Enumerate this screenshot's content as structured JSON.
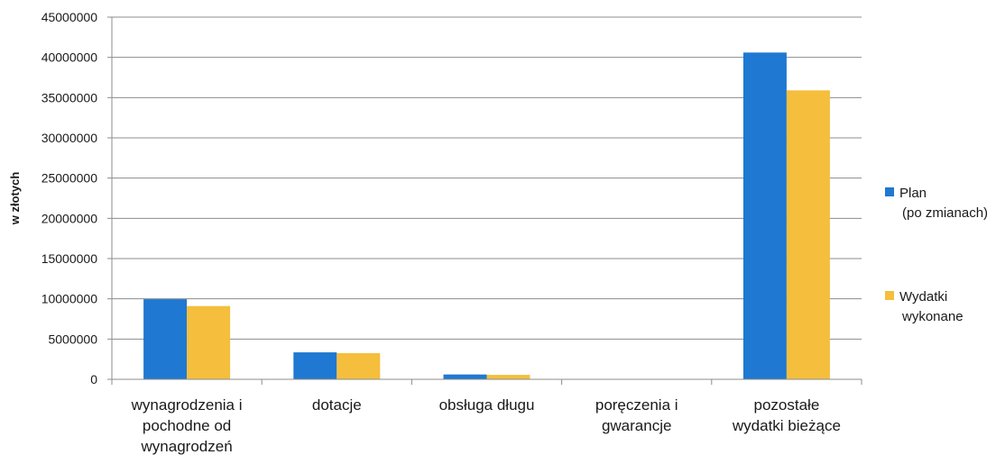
{
  "chart_data": {
    "type": "bar",
    "ylabel": "w złotych",
    "ylim": [
      0,
      45000000
    ],
    "yticks": [
      0,
      5000000,
      10000000,
      15000000,
      20000000,
      25000000,
      30000000,
      35000000,
      40000000,
      45000000
    ],
    "grid": true,
    "legend_position": "right",
    "categories": [
      [
        "wynagrodzenia i",
        "pochodne od",
        "wynagrodzeń"
      ],
      [
        "dotacje"
      ],
      [
        "obsługa długu"
      ],
      [
        "poręczenia i",
        "gwarancje"
      ],
      [
        "pozostałe",
        "wydatki bieżące"
      ]
    ],
    "series": [
      {
        "name": [
          "Plan",
          "(po zmianach)"
        ],
        "color": "#1f78d1",
        "values": [
          9950000,
          3350000,
          600000,
          0,
          40600000
        ]
      },
      {
        "name": [
          "Wydatki",
          "wykonane"
        ],
        "color": "#f5be3c",
        "values": [
          9100000,
          3250000,
          550000,
          0,
          35900000
        ]
      }
    ]
  }
}
